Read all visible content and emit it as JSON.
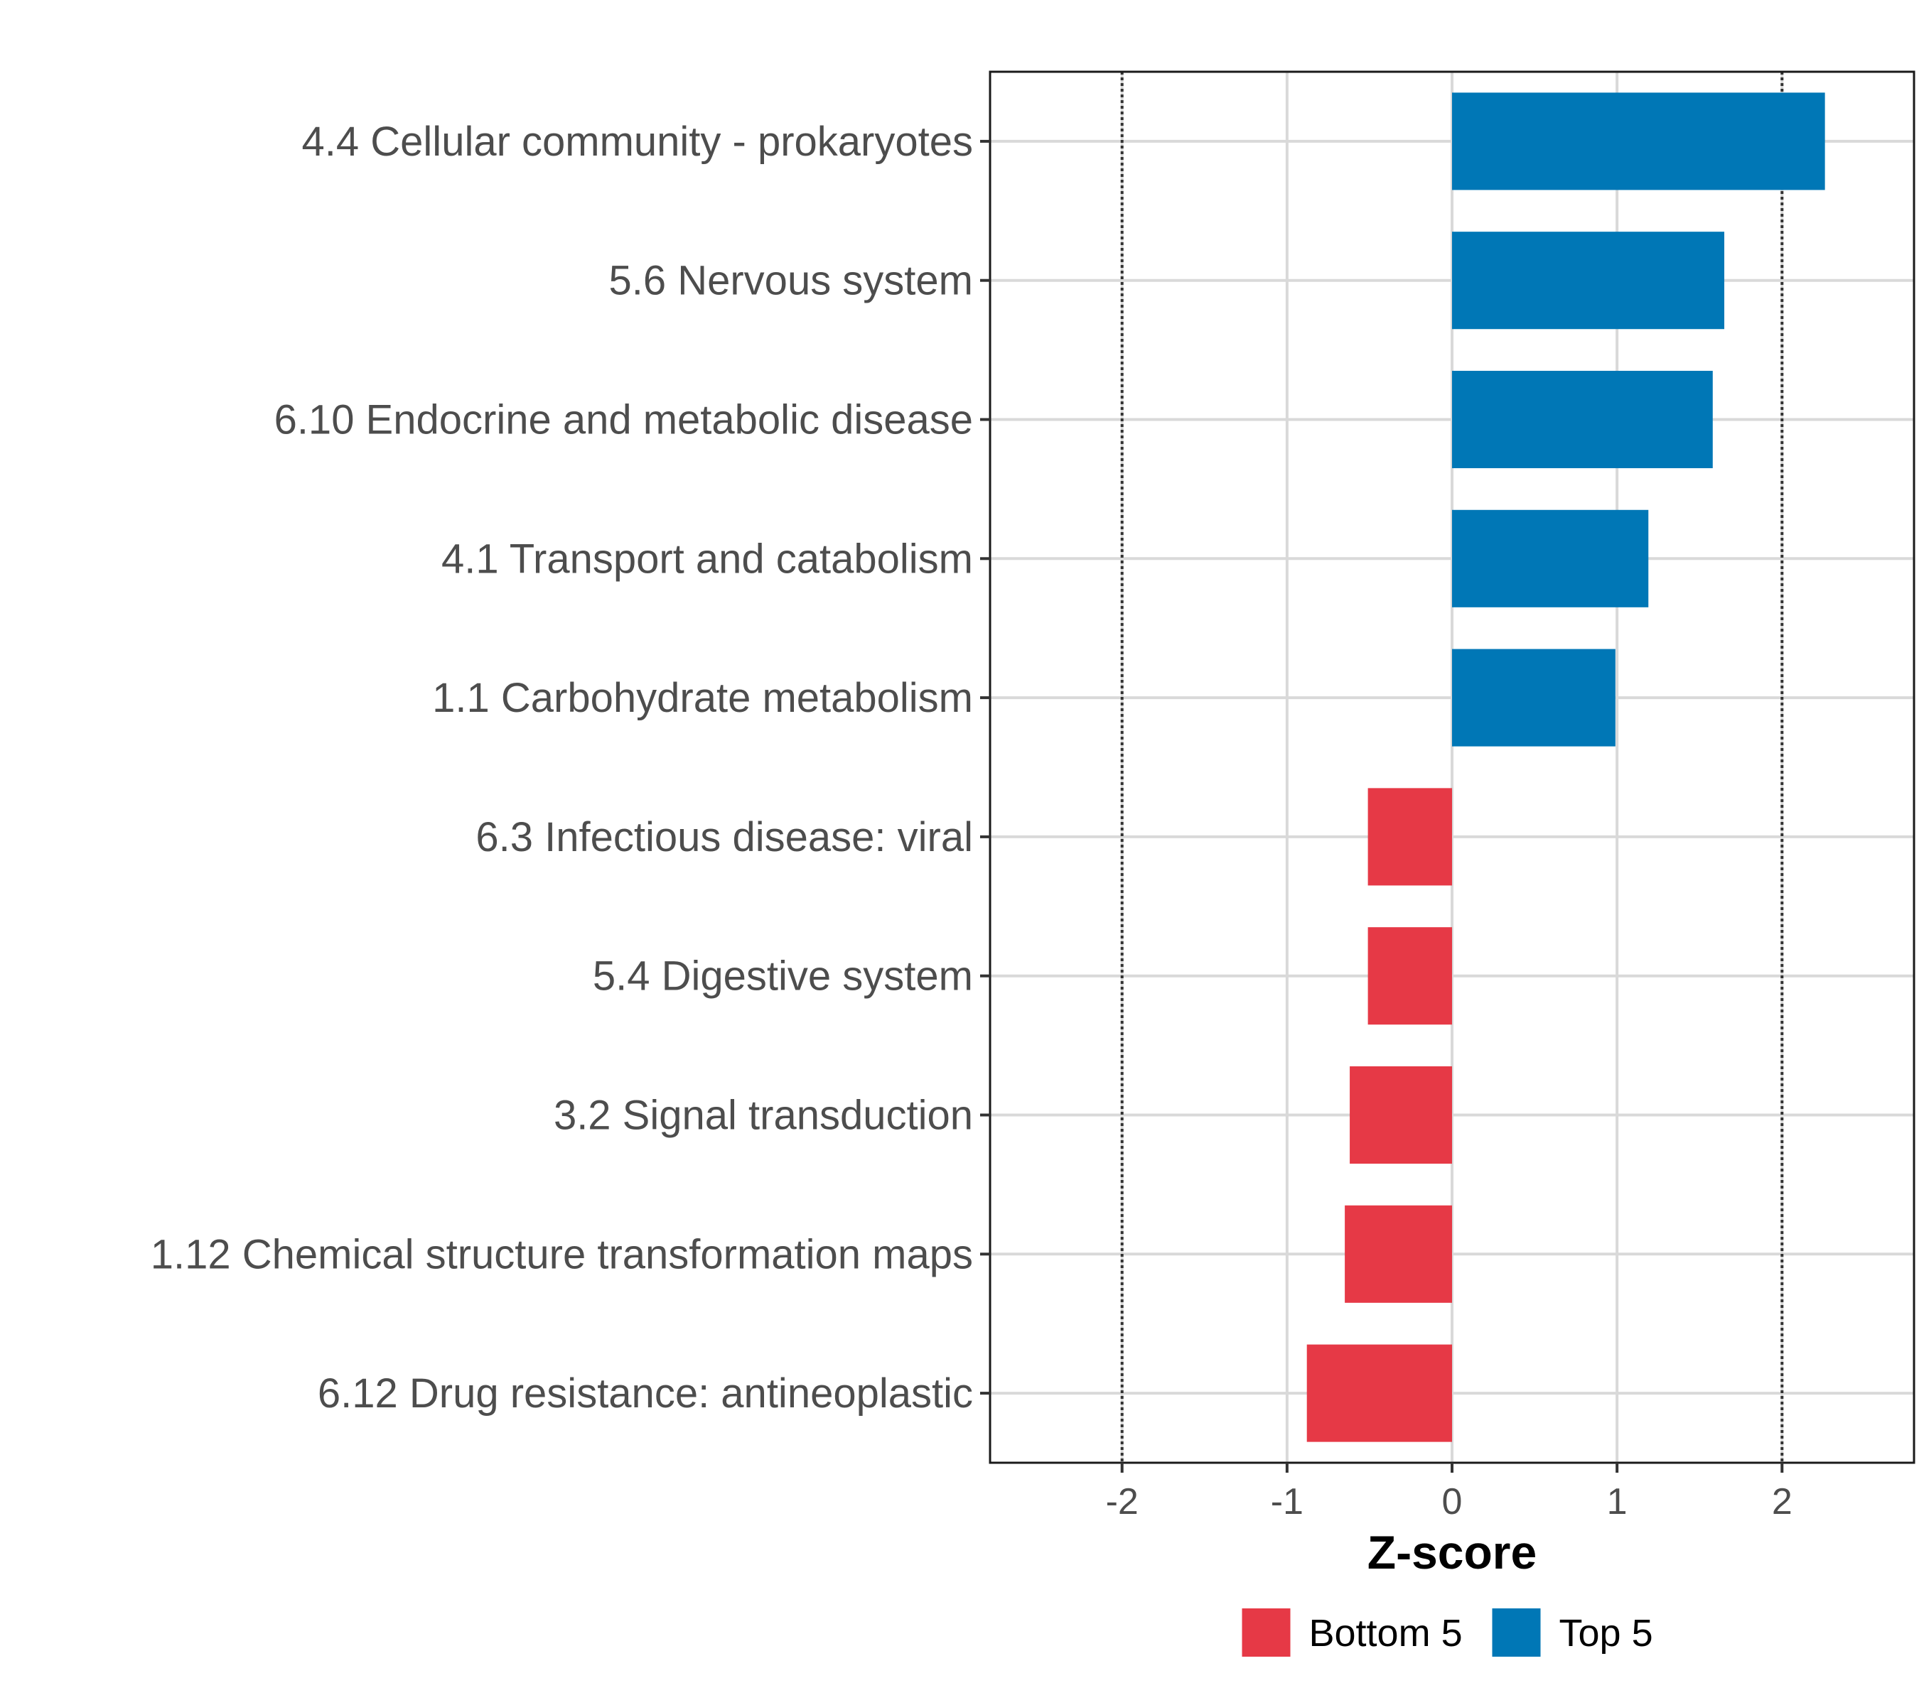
{
  "chart_data": {
    "type": "bar",
    "orientation": "horizontal",
    "title": "",
    "xlabel": "Z-score",
    "ylabel": "",
    "xlim": [
      -2.8,
      2.8
    ],
    "xticks": [
      -2,
      -1,
      0,
      1,
      2
    ],
    "xtick_labels": [
      "-2",
      "-1",
      "0",
      "1",
      "2"
    ],
    "reference_lines": [
      -2,
      2
    ],
    "grid": true,
    "categories": [
      "4.4 Cellular community - prokaryotes",
      "5.6 Nervous system",
      "6.10 Endocrine and metabolic disease",
      "4.1 Transport and catabolism",
      "1.1 Carbohydrate metabolism",
      "6.3 Infectious disease: viral",
      "5.4 Digestive system",
      "3.2 Signal transduction",
      "1.12 Chemical structure transformation maps",
      "6.12 Drug resistance: antineoplastic"
    ],
    "values": [
      2.26,
      1.65,
      1.58,
      1.19,
      0.99,
      -0.51,
      -0.51,
      -0.62,
      -0.65,
      -0.88
    ],
    "groups": [
      "Top 5",
      "Top 5",
      "Top 5",
      "Top 5",
      "Top 5",
      "Bottom 5",
      "Bottom 5",
      "Bottom 5",
      "Bottom 5",
      "Bottom 5"
    ],
    "legend": {
      "position": "bottom",
      "entries": [
        {
          "label": "Bottom 5",
          "color": "#e63946"
        },
        {
          "label": "Top 5",
          "color": "#0077b6"
        }
      ]
    },
    "colors": {
      "Top 5": "#0077b6",
      "Bottom 5": "#e63946"
    }
  }
}
